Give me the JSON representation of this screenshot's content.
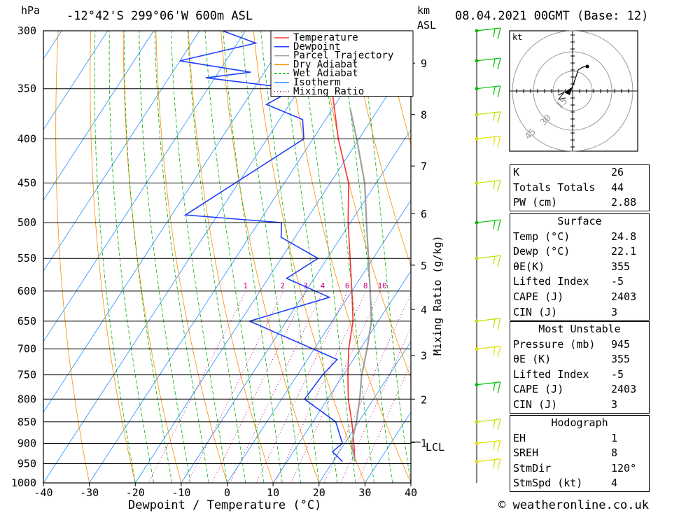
{
  "header": {
    "hpa_label": "hPa",
    "location": "-12°42'S  299°06'W  600m  ASL",
    "km_label": "km",
    "asl_label": "ASL",
    "datetime": "08.04.2021  00GMT  (Base: 12)"
  },
  "footer": {
    "copyright": "© weatheronline.co.uk"
  },
  "axes": {
    "xlabel": "Dewpoint / Temperature (°C)",
    "mixing_label": "Mixing Ratio (g/kg)",
    "lcl_label": "LCL"
  },
  "legend": [
    {
      "label": "Temperature",
      "color": "#ff3030",
      "style": "solid"
    },
    {
      "label": "Dewpoint",
      "color": "#2040ff",
      "style": "solid"
    },
    {
      "label": "Parcel Trajectory",
      "color": "#a0a0a0",
      "style": "solid"
    },
    {
      "label": "Dry Adiabat",
      "color": "#ff8c00",
      "style": "solid"
    },
    {
      "label": "Wet Adiabat",
      "color": "#00b000",
      "style": "dashed"
    },
    {
      "label": "Isotherm",
      "color": "#1e90ff",
      "style": "solid"
    },
    {
      "label": "Mixing Ratio",
      "color": "#c00080",
      "style": "dotted"
    }
  ],
  "hodograph": {
    "unit_label": "kt",
    "ring_labels": [
      "15",
      "30",
      "45"
    ]
  },
  "indices": {
    "top": [
      {
        "label": "K",
        "value": "26"
      },
      {
        "label": "Totals Totals",
        "value": "44"
      },
      {
        "label": "PW (cm)",
        "value": "2.88"
      }
    ],
    "surface_title": "Surface",
    "surface": [
      {
        "label": "Temp (°C)",
        "value": "24.8"
      },
      {
        "label": "Dewp (°C)",
        "value": "22.1"
      },
      {
        "label": "θE(K)",
        "value": "355"
      },
      {
        "label": "Lifted Index",
        "value": "-5"
      },
      {
        "label": "CAPE (J)",
        "value": "2403"
      },
      {
        "label": "CIN (J)",
        "value": "3"
      }
    ],
    "mu_title": "Most Unstable",
    "mu": [
      {
        "label": "Pressure (mb)",
        "value": "945"
      },
      {
        "label": "θE (K)",
        "value": "355"
      },
      {
        "label": "Lifted Index",
        "value": "-5"
      },
      {
        "label": "CAPE (J)",
        "value": "2403"
      },
      {
        "label": "CIN (J)",
        "value": "3"
      }
    ],
    "hodo_title": "Hodograph",
    "hodo": [
      {
        "label": "EH",
        "value": "1"
      },
      {
        "label": "SREH",
        "value": "8"
      },
      {
        "label": "StmDir",
        "value": "120°"
      },
      {
        "label": "StmSpd (kt)",
        "value": "4"
      }
    ]
  },
  "chart_data": {
    "type": "line",
    "title": "-12°42'S  299°06'W  600m  ASL",
    "xlabel": "Dewpoint / Temperature (°C)",
    "ylabel": "hPa",
    "y2label": "km ASL",
    "y_scale": "log-pressure",
    "xlim": [
      -40,
      40
    ],
    "ylim": [
      1000,
      300
    ],
    "skew": "skew-T",
    "x_ticks": [
      -40,
      -30,
      -20,
      -10,
      0,
      10,
      20,
      30,
      40
    ],
    "pressure_levels": [
      300,
      350,
      400,
      450,
      500,
      550,
      600,
      650,
      700,
      750,
      800,
      850,
      900,
      950,
      1000
    ],
    "km_ticks": [
      {
        "km": "1",
        "p": 898
      },
      {
        "km": "2",
        "p": 800
      },
      {
        "km": "3",
        "p": 712
      },
      {
        "km": "4",
        "p": 630
      },
      {
        "km": "5",
        "p": 560
      },
      {
        "km": "6",
        "p": 488
      },
      {
        "km": "7",
        "p": 430
      },
      {
        "km": "8",
        "p": 375
      },
      {
        "km": "9",
        "p": 327
      }
    ],
    "lcl_pressure": 897,
    "mixing_ratios": [
      "1",
      "2",
      "3",
      "4",
      "6",
      "8",
      "10",
      "16",
      "20",
      "25"
    ],
    "series": [
      {
        "name": "Temperature",
        "color": "#ff3030",
        "points": [
          [
            945,
            24.8
          ],
          [
            900,
            22.0
          ],
          [
            850,
            18.5
          ],
          [
            800,
            14.5
          ],
          [
            750,
            11.0
          ],
          [
            700,
            7.5
          ],
          [
            650,
            4.5
          ],
          [
            600,
            0.0
          ],
          [
            550,
            -5.0
          ],
          [
            500,
            -10.5
          ],
          [
            450,
            -16.0
          ],
          [
            400,
            -24.5
          ],
          [
            350,
            -33.0
          ],
          [
            300,
            -42.5
          ]
        ]
      },
      {
        "name": "Dewpoint",
        "color": "#2040ff",
        "points": [
          [
            945,
            22.1
          ],
          [
            920,
            18.5
          ],
          [
            900,
            19.5
          ],
          [
            850,
            15.0
          ],
          [
            800,
            5.0
          ],
          [
            750,
            5.5
          ],
          [
            720,
            6.5
          ],
          [
            650,
            -18.0
          ],
          [
            610,
            -4.0
          ],
          [
            580,
            -16.0
          ],
          [
            550,
            -12.0
          ],
          [
            520,
            -23.0
          ],
          [
            500,
            -25.0
          ],
          [
            490,
            -47.0
          ],
          [
            400,
            -32.0
          ],
          [
            380,
            -35.0
          ],
          [
            365,
            -45.0
          ],
          [
            350,
            -41.0
          ],
          [
            340,
            -62.0
          ],
          [
            335,
            -53.0
          ],
          [
            325,
            -70.0
          ],
          [
            310,
            -56.0
          ],
          [
            300,
            -65.0
          ]
        ]
      },
      {
        "name": "Parcel Trajectory",
        "color": "#a0a0a0",
        "points": [
          [
            945,
            24.8
          ],
          [
            900,
            21.5
          ],
          [
            850,
            19.5
          ],
          [
            800,
            17.0
          ],
          [
            750,
            14.0
          ],
          [
            700,
            11.5
          ],
          [
            650,
            8.5
          ],
          [
            600,
            4.0
          ],
          [
            550,
            -1.0
          ],
          [
            500,
            -6.5
          ],
          [
            450,
            -12.5
          ],
          [
            400,
            -20.5
          ],
          [
            370,
            -26.0
          ]
        ]
      }
    ],
    "wind_barbs": [
      {
        "p": 945,
        "color": "#e0e000"
      },
      {
        "p": 900,
        "color": "#e0e000"
      },
      {
        "p": 850,
        "color": "#c0e000"
      },
      {
        "p": 770,
        "color": "#00c000"
      },
      {
        "p": 700,
        "color": "#e0e000"
      },
      {
        "p": 650,
        "color": "#c0e000"
      },
      {
        "p": 550,
        "color": "#c0e000"
      },
      {
        "p": 500,
        "color": "#00c000"
      },
      {
        "p": 450,
        "color": "#c0e000"
      },
      {
        "p": 400,
        "color": "#e0e000"
      },
      {
        "p": 375,
        "color": "#c0e000"
      },
      {
        "p": 350,
        "color": "#00c000"
      },
      {
        "p": 325,
        "color": "#00c000"
      },
      {
        "p": 300,
        "color": "#00c000"
      }
    ]
  }
}
